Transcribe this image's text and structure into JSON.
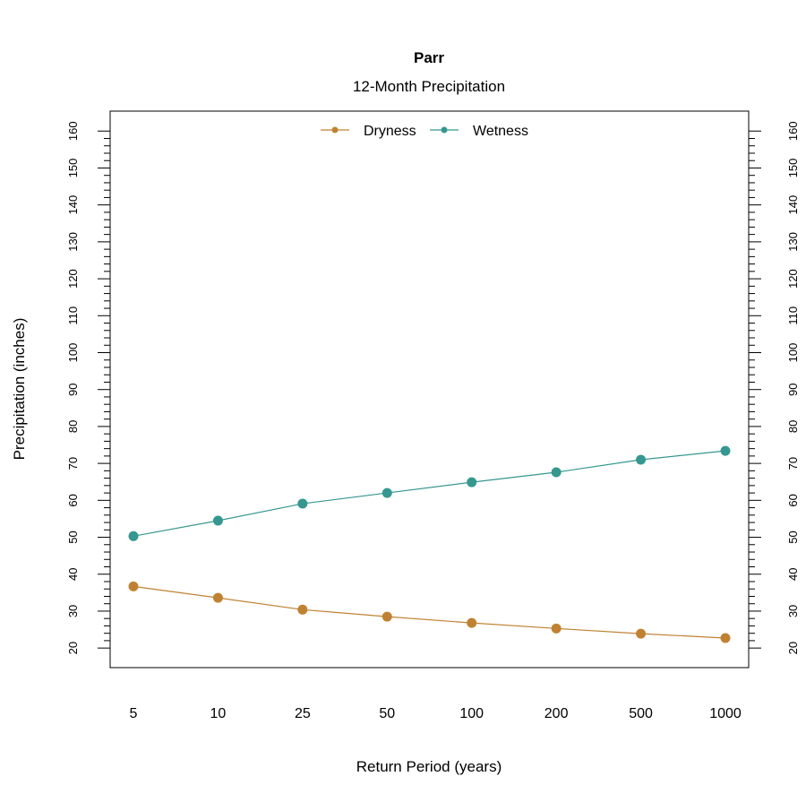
{
  "chart_data": {
    "type": "line",
    "title": "Parr",
    "subtitle": "12-Month Precipitation",
    "xlabel": "Return Period (years)",
    "ylabel": "Precipitation (inches)",
    "categories": [
      "5",
      "10",
      "25",
      "50",
      "100",
      "200",
      "500",
      "1000"
    ],
    "series": [
      {
        "name": "Dryness",
        "color": "#C08232",
        "values": [
          36.7,
          33.6,
          30.4,
          28.5,
          26.8,
          25.3,
          23.9,
          22.7
        ]
      },
      {
        "name": "Wetness",
        "color": "#35978F",
        "values": [
          50.3,
          54.5,
          59.1,
          62.0,
          64.9,
          67.6,
          71.0,
          73.4
        ]
      }
    ],
    "ylim": [
      14.7,
      165.4
    ],
    "yticks": [
      20,
      30,
      40,
      50,
      60,
      70,
      80,
      90,
      100,
      110,
      120,
      130,
      140,
      150,
      160
    ],
    "yminor_step": 2,
    "right_axis": true,
    "grid": false,
    "legend_position": "top-center"
  }
}
